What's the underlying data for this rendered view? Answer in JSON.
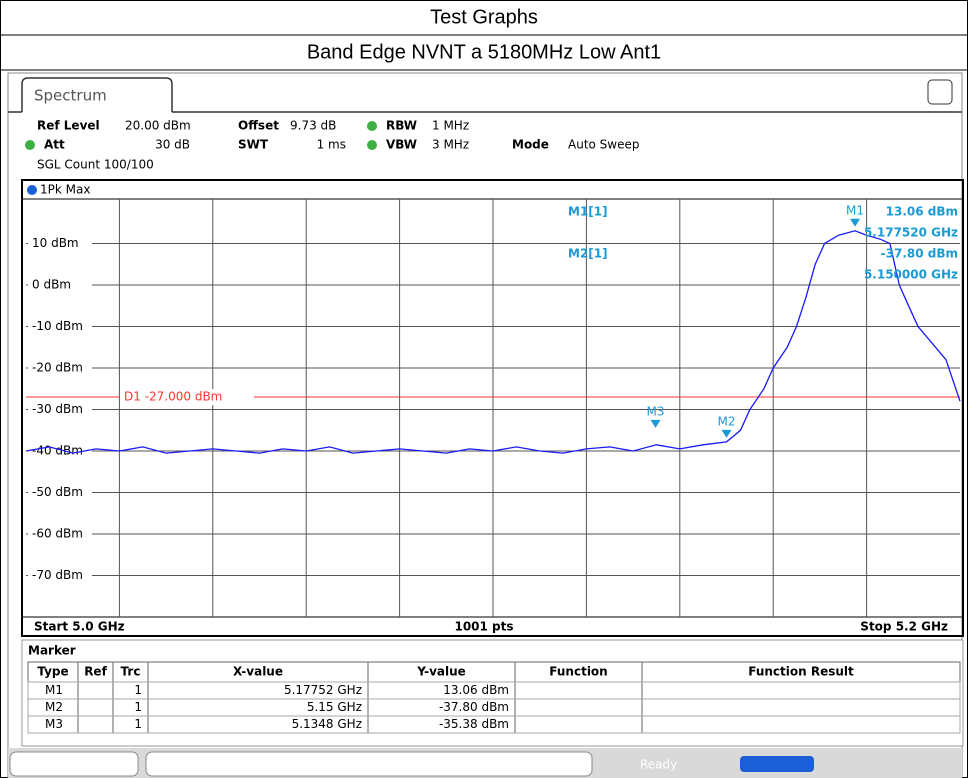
{
  "header": {
    "title": "Test Graphs",
    "subtitle": "Band Edge NVNT a 5180MHz Low Ant1"
  },
  "tab": "Spectrum",
  "settings": {
    "ref_level_label": "Ref Level",
    "ref_level": "20.00 dBm",
    "offset_label": "Offset",
    "offset": "9.73 dB",
    "rbw_label": "RBW",
    "rbw": "1 MHz",
    "att_label": "Att",
    "att": "30 dB",
    "swt_label": "SWT",
    "swt": "1 ms",
    "vbw_label": "VBW",
    "vbw": "3 MHz",
    "mode_label": "Mode",
    "mode": "Auto Sweep",
    "count": "SGL Count 100/100"
  },
  "trace_label": "1Pk Max",
  "chart": {
    "type": "line",
    "color": "#1a1aff",
    "x": [
      5.0,
      5.005,
      5.01,
      5.015,
      5.02,
      5.025,
      5.03,
      5.035,
      5.04,
      5.045,
      5.05,
      5.055,
      5.06,
      5.065,
      5.07,
      5.075,
      5.08,
      5.085,
      5.09,
      5.095,
      5.1,
      5.105,
      5.11,
      5.115,
      5.12,
      5.125,
      5.13,
      5.135,
      5.14,
      5.145,
      5.15,
      5.153,
      5.155,
      5.158,
      5.16,
      5.163,
      5.165,
      5.167,
      5.169,
      5.171,
      5.174,
      5.1775,
      5.18,
      5.183,
      5.185,
      5.187,
      5.189,
      5.191,
      5.194,
      5.197,
      5.2
    ],
    "values": [
      -40,
      -39,
      -40.5,
      -39.5,
      -40,
      -39,
      -40.5,
      -40,
      -39.5,
      -40,
      -40.5,
      -39.5,
      -40,
      -39,
      -40.5,
      -40,
      -39.5,
      -40,
      -40.5,
      -39.5,
      -40,
      -39,
      -40,
      -40.5,
      -39.5,
      -39,
      -40,
      -38.5,
      -39.5,
      -38.5,
      -37.8,
      -35,
      -30,
      -25,
      -20,
      -15,
      -10,
      -3,
      5,
      10,
      12,
      13.06,
      12,
      11,
      10,
      0,
      -5,
      -10,
      -14,
      -18,
      -28
    ],
    "xlim": [
      5.0,
      5.2
    ],
    "ylim": [
      -80,
      20
    ],
    "xticks": [
      5.02,
      5.04,
      5.06,
      5.08,
      5.1,
      5.12,
      5.14,
      5.16,
      5.18
    ],
    "yticks": [
      {
        "value": 10,
        "label": "10 dBm"
      },
      {
        "value": 0,
        "label": "0 dBm"
      },
      {
        "value": -10,
        "label": "-10 dBm"
      },
      {
        "value": -20,
        "label": "-20 dBm"
      },
      {
        "value": -30,
        "label": "-30 dBm"
      },
      {
        "value": -40,
        "label": "-40 dBm"
      },
      {
        "value": -50,
        "label": "-50 dBm"
      },
      {
        "value": -60,
        "label": "-60 dBm"
      },
      {
        "value": -70,
        "label": "-70 dBm"
      }
    ],
    "display_line": {
      "value": -27,
      "label": "D1 -27.000 dBm",
      "color": "#ff3333"
    },
    "markers": [
      {
        "label": "M1",
        "x": 5.17752,
        "y": 13.06
      },
      {
        "label": "M2",
        "x": 5.15,
        "y": -37.8
      },
      {
        "label": "M3",
        "x": 5.1348,
        "y": -35.38
      }
    ],
    "readout": {
      "m1": "M1[1]",
      "m1_value": "13.06 dBm",
      "m1_freq": "5.177520 GHz",
      "m2": "M2[1]",
      "m2_value": "-37.80 dBm",
      "m2_freq": "5.150000 GHz"
    }
  },
  "footer": {
    "start": "Start 5.0 GHz",
    "points": "1001 pts",
    "stop": "Stop 5.2 GHz"
  },
  "marker_table": {
    "title": "Marker",
    "columns": [
      "Type",
      "Ref",
      "Trc",
      "X-value",
      "Y-value",
      "Function",
      "Function Result"
    ],
    "rows": [
      [
        "M1",
        "",
        "1",
        "5.17752 GHz",
        "13.06 dBm",
        "",
        ""
      ],
      [
        "M2",
        "",
        "1",
        "5.15 GHz",
        "-37.80 dBm",
        "",
        ""
      ],
      [
        "M3",
        "",
        "1",
        "5.1348 GHz",
        "-35.38 dBm",
        "",
        ""
      ]
    ]
  },
  "status": "Ready"
}
